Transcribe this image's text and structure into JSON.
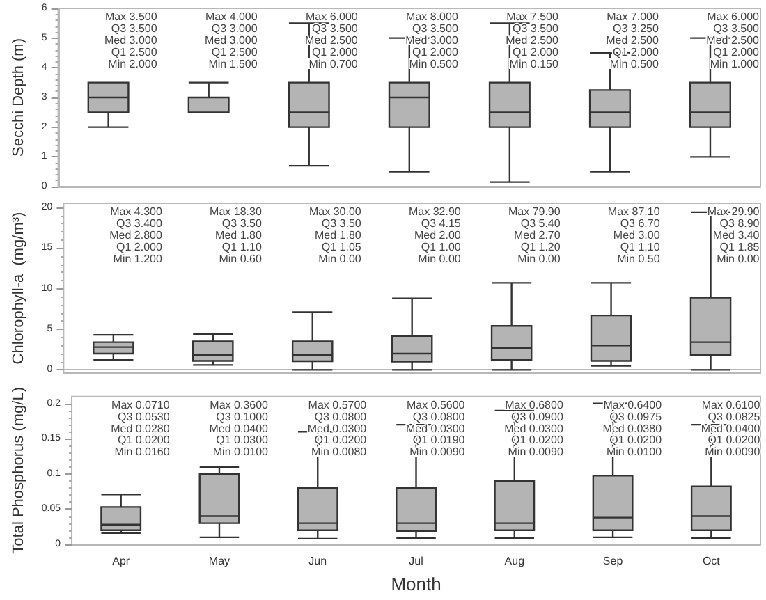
{
  "chart_data": [
    {
      "type": "box",
      "ylabel": "Secchi Depth (m)",
      "categories": [
        null,
        null,
        null,
        null,
        null,
        null,
        null
      ],
      "ylim": [
        0,
        6
      ],
      "yticks": [
        0,
        1,
        2,
        3,
        4,
        5,
        6
      ],
      "grid": false,
      "color": "#b4b4b4",
      "boxes": [
        {
          "low": 2,
          "q1": 2.5,
          "median": 3,
          "q3": 3.5,
          "high": 3.5
        },
        {
          "low": 2.5,
          "q1": 2.5,
          "median": 3,
          "q3": 3,
          "high": 3.5
        },
        {
          "low": 0.7,
          "q1": 2,
          "median": 2.5,
          "q3": 3.5,
          "high": 5.5
        },
        {
          "low": 0.5,
          "q1": 2,
          "median": 3,
          "q3": 3.5,
          "high": 5
        },
        {
          "low": 0.15,
          "q1": 2,
          "median": 2.5,
          "q3": 3.5,
          "high": 5.5
        },
        {
          "low": 0.5,
          "q1": 2,
          "median": 2.5,
          "q3": 3.25,
          "high": 4.5
        },
        {
          "low": 1,
          "q1": 2,
          "median": 2.5,
          "q3": 3.5,
          "high": 5
        }
      ],
      "annotations": [
        "Max 3.500\nQ3 3.500\nMed 3.000\nQ1 2.500\nMin 2.000",
        "Max 4.000\nQ3 3.000\nMed 3.000\nQ1 2.500\nMin 1.500",
        "Max 6.000\nQ3 3.500\nMed 2.500\nQ1 2.000\nMin 0.700",
        "Max 8.000\nQ3 3.500\nMed 3.000\nQ1 2.000\nMin 0.500",
        "Max 7.500\nQ3 3.500\nMed 2.500\nQ1 2.000\nMin 0.150",
        "Max 7.000\nQ3 3.250\nMed 2.500\nQ1 2.000\nMin 0.500",
        "Max 6.000\nQ3 3.500\nMed 2.500\nQ1 2.000\nMin 1.000"
      ]
    },
    {
      "type": "box",
      "ylabel": "Chlorophyll-a  (mg/m³)",
      "categories": [
        null,
        null,
        null,
        null,
        null,
        null,
        null
      ],
      "ylim": [
        -0.4,
        20.5
      ],
      "yticks": [
        0,
        5,
        10,
        15,
        20
      ],
      "grid": false,
      "color": "#b4b4b4",
      "boxes": [
        {
          "low": 1.2,
          "q1": 2,
          "median": 2.8,
          "q3": 3.4,
          "high": 4.3
        },
        {
          "low": 0.6,
          "q1": 1.1,
          "median": 1.8,
          "q3": 3.5,
          "high": 4.4
        },
        {
          "low": 0,
          "q1": 1.05,
          "median": 1.8,
          "q3": 3.5,
          "high": 7.1
        },
        {
          "low": 0,
          "q1": 1,
          "median": 2,
          "q3": 4.15,
          "high": 8.8
        },
        {
          "low": 0,
          "q1": 1.2,
          "median": 2.7,
          "q3": 5.4,
          "high": 10.7
        },
        {
          "low": 0.5,
          "q1": 1.1,
          "median": 3,
          "q3": 6.7,
          "high": 10.7
        },
        {
          "low": 0,
          "q1": 1.85,
          "median": 3.4,
          "q3": 8.9,
          "high": 19.4
        }
      ],
      "annotations": [
        "Max 4.300\nQ3 3.400\nMed 2.800\nQ1 2.000\nMin 1.200",
        "Max 18.30\nQ3 3.50\nMed 1.80\nQ1 1.10\nMin 0.60",
        "Max 30.00\nQ3 3.50\nMed 1.80\nQ1 1.05\nMin 0.00",
        "Max 32.90\nQ3 4.15\nMed 2.00\nQ1 1.00\nMin 0.00",
        "Max 79.90\nQ3 5.40\nMed 2.70\nQ1 1.20\nMin 0.00",
        "Max 87.10\nQ3 6.70\nMed 3.00\nQ1 1.10\nMin 0.50",
        "Max 29.90\nQ3 8.90\nMed 3.40\nQ1 1.85\nMin 0.00"
      ]
    },
    {
      "type": "box",
      "xlabel": "Month",
      "ylabel": "Total Phosphorus (mg/L)",
      "categories": [
        "Apr",
        "May",
        "Jun",
        "Jul",
        "Aug",
        "Sep",
        "Oct"
      ],
      "ylim": [
        0,
        0.21
      ],
      "yticks": [
        0,
        0.05,
        0.1,
        0.15,
        0.2
      ],
      "grid": false,
      "color": "#b4b4b4",
      "boxes": [
        {
          "low": 0.016,
          "q1": 0.02,
          "median": 0.028,
          "q3": 0.053,
          "high": 0.071
        },
        {
          "low": 0.01,
          "q1": 0.03,
          "median": 0.04,
          "q3": 0.1,
          "high": 0.11
        },
        {
          "low": 0.008,
          "q1": 0.02,
          "median": 0.03,
          "q3": 0.08,
          "high": 0.16
        },
        {
          "low": 0.009,
          "q1": 0.019,
          "median": 0.03,
          "q3": 0.08,
          "high": 0.17
        },
        {
          "low": 0.009,
          "q1": 0.02,
          "median": 0.03,
          "q3": 0.09,
          "high": 0.19
        },
        {
          "low": 0.01,
          "q1": 0.02,
          "median": 0.038,
          "q3": 0.0975,
          "high": 0.2
        },
        {
          "low": 0.009,
          "q1": 0.02,
          "median": 0.04,
          "q3": 0.0825,
          "high": 0.17
        }
      ],
      "annotations": [
        "Max 0.0710\nQ3 0.0530\nMed 0.0280\nQ1 0.0200\nMin 0.0160",
        "Max 0.3600\nQ3 0.1000\nMed 0.0400\nQ1 0.0300\nMin 0.0100",
        "Max 0.5700\nQ3 0.0800\nMed 0.0300\nQ1 0.0200\nMin 0.0080",
        "Max 0.5600\nQ3 0.0800\nMed 0.0300\nQ1 0.0190\nMin 0.0090",
        "Max 0.6800\nQ3 0.0900\nMed 0.0300\nQ1 0.0200\nMin 0.0090",
        "Max 0.6400\nQ3 0.0975\nMed 0.0380\nQ1 0.0200\nMin 0.0100",
        "Max 0.6100\nQ3 0.0825\nMed 0.0400\nQ1 0.0200\nMin 0.0090"
      ]
    }
  ]
}
